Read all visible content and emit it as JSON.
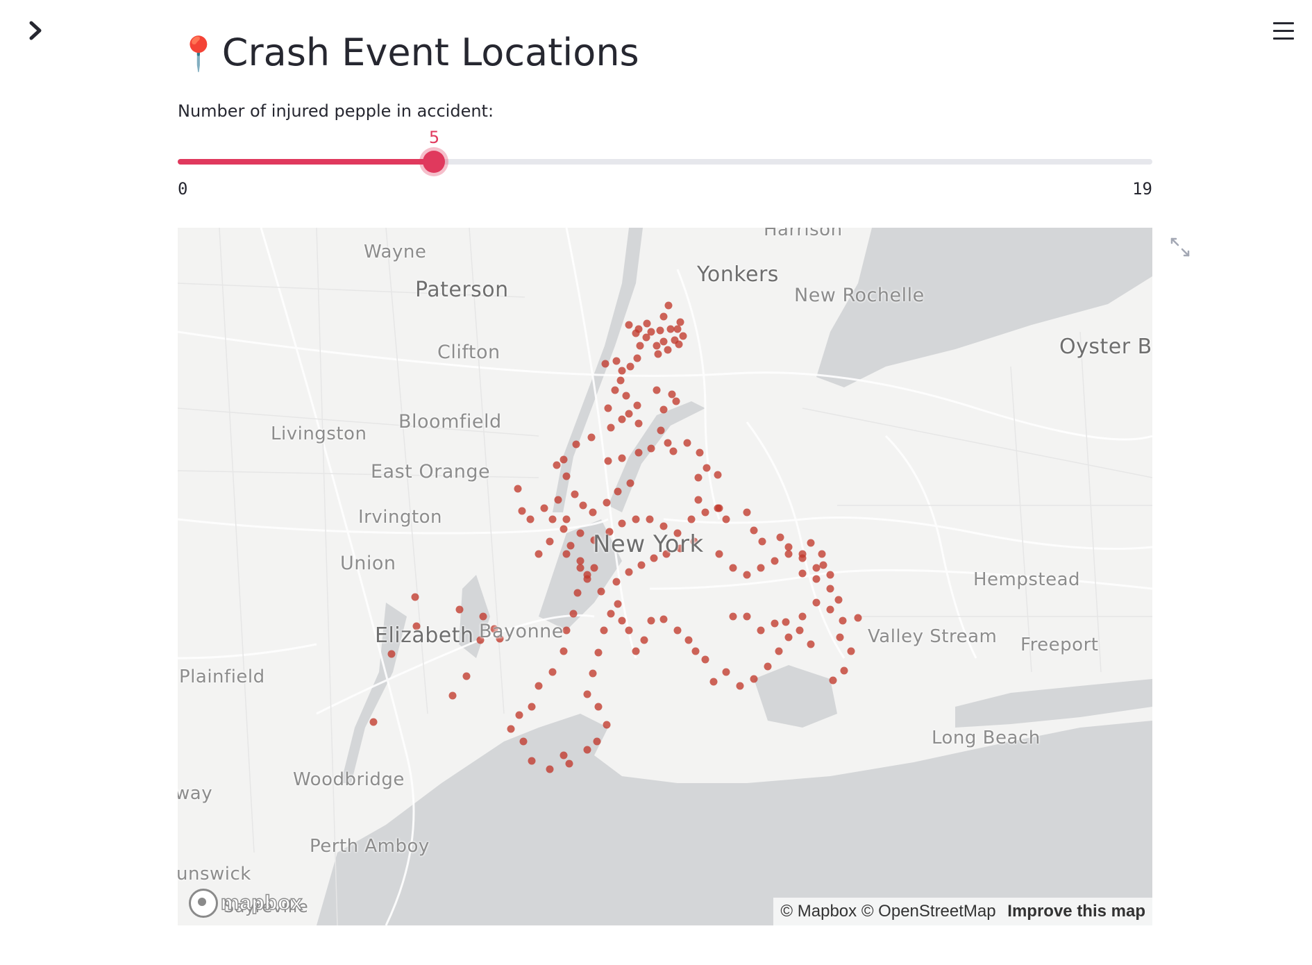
{
  "page": {
    "title": "Crash Event Locations",
    "title_icon": "round-pushpin-icon"
  },
  "header": {
    "sidebar_toggle_icon": "chevron-right-icon",
    "menu_icon": "hamburger-menu-icon"
  },
  "slider": {
    "label": "Number of injured pepple in accident:",
    "min": 0,
    "max": 19,
    "value": 5,
    "min_label": "0",
    "max_label": "19",
    "value_label": "5",
    "accent_color": "#e0395d"
  },
  "map": {
    "places": {
      "harrison": "Harrison",
      "wayne": "Wayne",
      "yonkers": "Yonkers",
      "paterson": "Paterson",
      "new_rochelle": "New Rochelle",
      "oyster_bay": "Oyster Ba",
      "clifton": "Clifton",
      "bloomfield": "Bloomfield",
      "livingston": "Livingston",
      "east_orange": "East Orange",
      "irvington": "Irvington",
      "new_york": "New York",
      "hempstead": "Hempstead",
      "union": "Union",
      "elizabeth": "Elizabeth",
      "bayonne": "Bayonne",
      "valley_stream": "Valley Stream",
      "freeport": "Freeport",
      "plainfield": "Plainfield",
      "long_beach": "Long Beach",
      "woodbridge": "Woodbridge",
      "way": "way",
      "perth_amboy": "Perth Amboy",
      "brunswick": "unswick",
      "sayreville": "Sayreville"
    },
    "logo_text": "mapbox",
    "attribution": {
      "mapbox": "© Mapbox",
      "osm": "© OpenStreetMap",
      "improve": "Improve this map"
    },
    "point_color": "#c0392b",
    "expand_icon": "fullscreen-expand-icon"
  }
}
